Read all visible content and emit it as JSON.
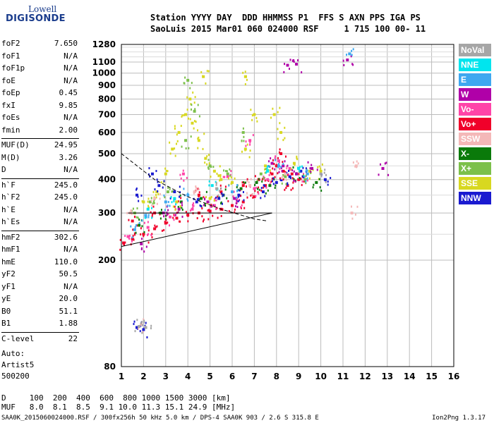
{
  "logo": {
    "line1": "Lowell",
    "line2": "DIGISONDE"
  },
  "header": {
    "line1": "Station YYYY DAY  DDD HHMMSS P1  FFS S AXN PPS IGA PS",
    "line2": "SaoLuis 2015 Mar01 060 024000 RSF     1 715 100 00- 11"
  },
  "params": [
    {
      "name": "foF2",
      "value": "7.650"
    },
    {
      "name": "foF1",
      "value": "N/A"
    },
    {
      "name": "foF1p",
      "value": "N/A"
    },
    {
      "name": "foE",
      "value": "N/A"
    },
    {
      "name": "foEp",
      "value": "0.45"
    },
    {
      "name": "fxI",
      "value": "9.85"
    },
    {
      "name": "foEs",
      "value": "N/A"
    },
    {
      "name": "fmin",
      "value": "2.00"
    },
    {
      "name": "MUF(D)",
      "value": "24.95"
    },
    {
      "name": "M(D)",
      "value": "3.26"
    },
    {
      "name": "D",
      "value": "N/A"
    },
    {
      "name": "h`F",
      "value": "245.0"
    },
    {
      "name": "h`F2",
      "value": "245.0"
    },
    {
      "name": "h`E",
      "value": "N/A"
    },
    {
      "name": "h`Es",
      "value": "N/A"
    },
    {
      "name": "hmF2",
      "value": "302.6"
    },
    {
      "name": "hmF1",
      "value": "N/A"
    },
    {
      "name": "hmE",
      "value": "110.0"
    },
    {
      "name": "yF2",
      "value": "50.5"
    },
    {
      "name": "yF1",
      "value": "N/A"
    },
    {
      "name": "yE",
      "value": "20.0"
    },
    {
      "name": "B0",
      "value": "51.1"
    },
    {
      "name": "B1",
      "value": "1.88"
    },
    {
      "name": "C-level",
      "value": "22"
    }
  ],
  "auto": {
    "line1": "Auto:",
    "line2": "Artist5",
    "line3": "500200"
  },
  "legend": [
    {
      "label": "NoVal",
      "color": "#a6a6a6"
    },
    {
      "label": "NNE",
      "color": "#00e5ee"
    },
    {
      "label": "E",
      "color": "#3ea8f0"
    },
    {
      "label": "W",
      "color": "#b000a8"
    },
    {
      "label": "Vo-",
      "color": "#ff44a8"
    },
    {
      "label": "Vo+",
      "color": "#f0002a"
    },
    {
      "label": "SSW",
      "color": "#f4b8b8"
    },
    {
      "label": "X-",
      "color": "#0a7a0a"
    },
    {
      "label": "X+",
      "color": "#7cc04a"
    },
    {
      "label": "SSE",
      "color": "#d8d820"
    },
    {
      "label": "NNW",
      "color": "#1a1ad0"
    }
  ],
  "bottom_table": {
    "row1": "D     100  200  400  600  800 1000 1500 3000 [km]",
    "row2": "MUF   8.0  8.1  8.5  9.1 10.0 11.3 15.1 24.9 [MHz]"
  },
  "footer": {
    "left": "SAA0K_2015060024000.RSF / 300fx256h 50 kHz 5.0 km / DPS-4 SAA0K 903 / 2.6 S 315.8 E",
    "right": "Ion2Png 1.3.17"
  },
  "chart_data": {
    "type": "scatter",
    "title": "",
    "xlabel": "",
    "ylabel": "",
    "xlim": [
      1,
      16
    ],
    "ylim": [
      80,
      1280
    ],
    "y_scale": "log",
    "x_ticks": [
      1,
      2,
      3,
      4,
      5,
      6,
      7,
      8,
      9,
      10,
      11,
      12,
      13,
      14,
      15,
      16
    ],
    "y_ticks": [
      80,
      200,
      300,
      400,
      500,
      600,
      700,
      800,
      900,
      1000,
      1100,
      1280
    ],
    "grid": true,
    "series": [
      {
        "name": "Vo+",
        "color": "#f0002a",
        "points": [
          [
            1.1,
            232
          ],
          [
            1.5,
            240
          ],
          [
            2.0,
            250
          ],
          [
            2.5,
            262
          ],
          [
            3.0,
            275
          ],
          [
            3.5,
            287
          ],
          [
            4.0,
            295
          ],
          [
            4.5,
            300
          ],
          [
            5.0,
            305
          ],
          [
            5.5,
            310
          ],
          [
            6.0,
            320
          ],
          [
            6.5,
            330
          ],
          [
            7.0,
            345
          ],
          [
            7.5,
            380
          ],
          [
            7.8,
            420
          ],
          [
            8.0,
            450
          ],
          [
            8.3,
            430
          ],
          [
            8.7,
            420
          ],
          [
            9.0,
            400
          ],
          [
            1.5,
            280
          ],
          [
            2.5,
            300
          ],
          [
            3.5,
            330
          ],
          [
            4.5,
            350
          ],
          [
            5.5,
            360
          ],
          [
            6.5,
            380
          ],
          [
            7.2,
            400
          ],
          [
            8.2,
            500
          ],
          [
            8.5,
            380
          ]
        ]
      },
      {
        "name": "Vo-",
        "color": "#ff44a8",
        "points": [
          [
            1.3,
            245
          ],
          [
            2.2,
            265
          ],
          [
            3.2,
            290
          ],
          [
            4.2,
            310
          ],
          [
            5.2,
            320
          ],
          [
            6.2,
            340
          ],
          [
            7.0,
            370
          ],
          [
            7.6,
            400
          ],
          [
            8.1,
            470
          ],
          [
            8.6,
            440
          ],
          [
            9.2,
            410
          ],
          [
            3.8,
            420
          ],
          [
            5.8,
            410
          ],
          [
            6.8,
            560
          ]
        ]
      },
      {
        "name": "SSE",
        "color": "#d8d820",
        "points": [
          [
            2.0,
            330
          ],
          [
            2.6,
            360
          ],
          [
            3.0,
            420
          ],
          [
            3.3,
            520
          ],
          [
            3.6,
            600
          ],
          [
            3.9,
            700
          ],
          [
            4.1,
            800
          ],
          [
            4.2,
            650
          ],
          [
            4.5,
            560
          ],
          [
            4.8,
            480
          ],
          [
            5.2,
            430
          ],
          [
            5.5,
            400
          ],
          [
            6.0,
            390
          ],
          [
            6.6,
            520
          ],
          [
            7.0,
            700
          ],
          [
            7.5,
            450
          ],
          [
            7.9,
            700
          ],
          [
            8.2,
            600
          ],
          [
            8.8,
            460
          ],
          [
            9.5,
            430
          ],
          [
            10.0,
            430
          ],
          [
            4.7,
            970
          ],
          [
            6.6,
            970
          ],
          [
            3.5,
            330
          ],
          [
            5.0,
            340
          ]
        ]
      },
      {
        "name": "X+",
        "color": "#7cc04a",
        "points": [
          [
            1.6,
            300
          ],
          [
            2.3,
            330
          ],
          [
            3.1,
            360
          ],
          [
            3.9,
            560
          ],
          [
            4.3,
            720
          ],
          [
            5.0,
            450
          ],
          [
            5.8,
            420
          ],
          [
            6.5,
            600
          ],
          [
            7.3,
            420
          ],
          [
            8.4,
            410
          ],
          [
            9.3,
            400
          ],
          [
            4.0,
            940
          ]
        ]
      },
      {
        "name": "X-",
        "color": "#0a7a0a",
        "points": [
          [
            1.8,
            270
          ],
          [
            2.8,
            300
          ],
          [
            3.7,
            330
          ],
          [
            4.6,
            340
          ],
          [
            5.6,
            350
          ],
          [
            6.4,
            370
          ],
          [
            7.1,
            390
          ],
          [
            7.7,
            380
          ],
          [
            8.9,
            420
          ],
          [
            9.8,
            390
          ]
        ]
      },
      {
        "name": "NNW",
        "color": "#1a1ad0",
        "points": [
          [
            1.7,
            350
          ],
          [
            2.4,
            420
          ],
          [
            2.7,
            380
          ],
          [
            3.4,
            360
          ],
          [
            4.4,
            330
          ],
          [
            5.4,
            340
          ],
          [
            6.3,
            350
          ],
          [
            7.4,
            360
          ],
          [
            8.0,
            390
          ],
          [
            8.6,
            410
          ],
          [
            9.1,
            430
          ],
          [
            10.2,
            400
          ],
          [
            1.7,
            112
          ],
          [
            2.0,
            110
          ]
        ]
      },
      {
        "name": "W",
        "color": "#b000a8",
        "points": [
          [
            1.9,
            230
          ],
          [
            2.9,
            300
          ],
          [
            3.6,
            310
          ],
          [
            4.9,
            330
          ],
          [
            6.1,
            340
          ],
          [
            7.8,
            460
          ],
          [
            8.3,
            450
          ],
          [
            8.9,
            420
          ],
          [
            9.6,
            440
          ],
          [
            8.5,
            1070
          ],
          [
            8.9,
            1080
          ],
          [
            11.2,
            1120
          ],
          [
            12.8,
            440
          ]
        ]
      },
      {
        "name": "E",
        "color": "#3ea8f0",
        "points": [
          [
            1.6,
            260
          ],
          [
            2.1,
            290
          ],
          [
            3.0,
            330
          ],
          [
            4.0,
            350
          ],
          [
            6.0,
            360
          ],
          [
            8.1,
            450
          ],
          [
            9.4,
            420
          ],
          [
            11.3,
            1180
          ]
        ]
      },
      {
        "name": "NNE",
        "color": "#00e5ee",
        "points": [
          [
            2.2,
            310
          ],
          [
            3.4,
            340
          ],
          [
            5.1,
            380
          ],
          [
            7.6,
            430
          ],
          [
            9.0,
            440
          ]
        ]
      },
      {
        "name": "SSW",
        "color": "#f4b8b8",
        "points": [
          [
            1.4,
            300
          ],
          [
            2.5,
            340
          ],
          [
            4.3,
            360
          ],
          [
            6.8,
            380
          ],
          [
            8.4,
            420
          ],
          [
            1.9,
            115
          ],
          [
            11.4,
            300
          ],
          [
            11.6,
            450
          ]
        ]
      },
      {
        "name": "NoVal",
        "color": "#a6a6a6",
        "points": [
          [
            1.8,
            113
          ],
          [
            2.1,
            112
          ],
          [
            10.0,
            420
          ],
          [
            5.3,
            370
          ]
        ]
      }
    ],
    "profile_lines": [
      {
        "style": "solid",
        "points": [
          [
            1,
            225
          ],
          [
            7.8,
            300
          ]
        ]
      },
      {
        "style": "solid",
        "points": [
          [
            1.3,
            300
          ],
          [
            7.8,
            300
          ]
        ]
      },
      {
        "style": "dashed",
        "points": [
          [
            1,
            500
          ],
          [
            2.5,
            400
          ],
          [
            4.0,
            345
          ],
          [
            5.5,
            310
          ],
          [
            7.0,
            285
          ],
          [
            7.6,
            280
          ]
        ]
      }
    ]
  }
}
